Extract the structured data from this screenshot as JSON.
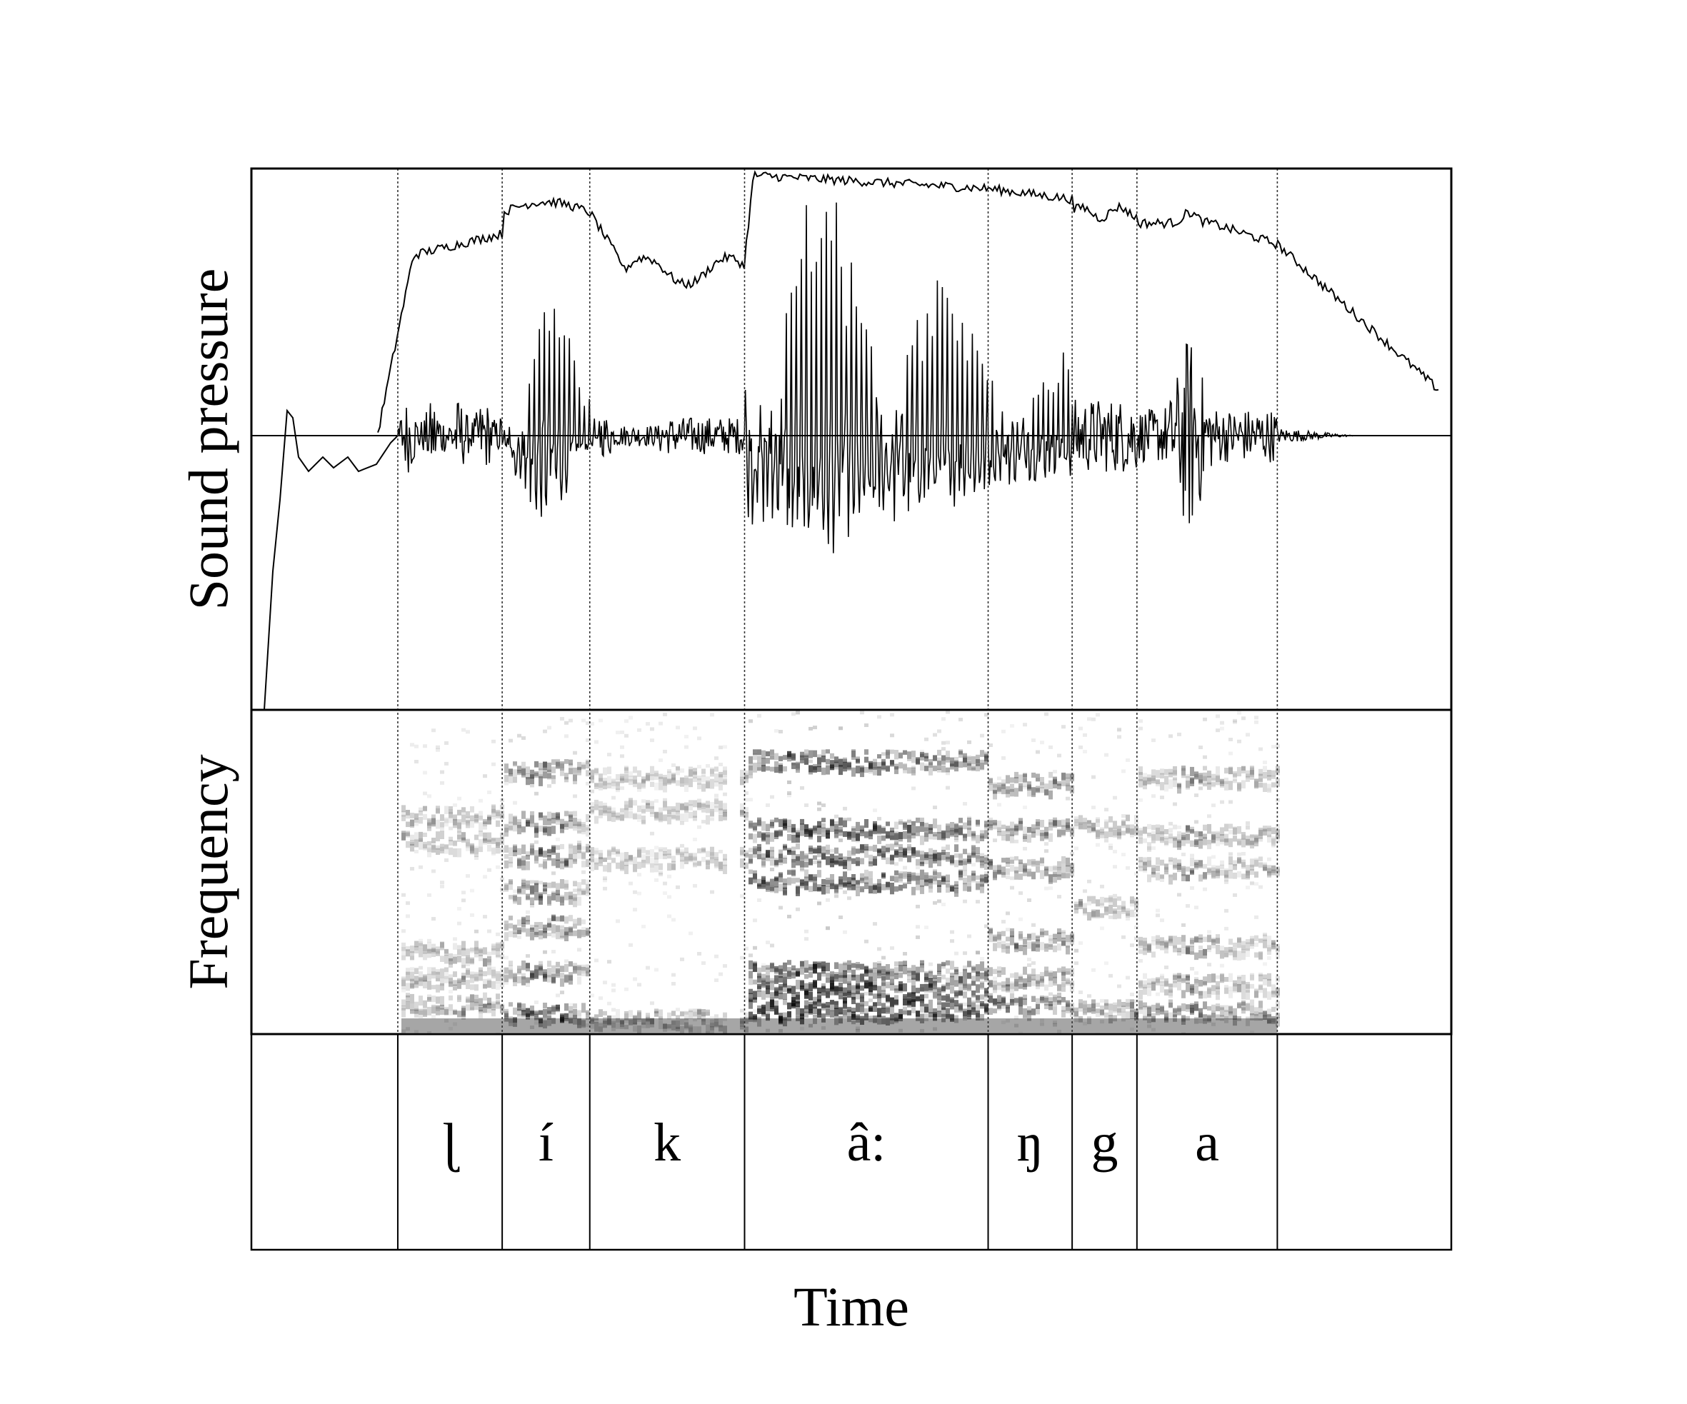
{
  "figure": {
    "y_axis_top": "Sound pressure",
    "y_axis_middle": "Frequency",
    "x_axis": "Time",
    "segments": [
      {
        "label": "",
        "start": 0.0,
        "end": 0.122
      },
      {
        "label": "ɭ",
        "start": 0.122,
        "end": 0.209
      },
      {
        "label": "í",
        "start": 0.209,
        "end": 0.282
      },
      {
        "label": "k",
        "start": 0.282,
        "end": 0.411
      },
      {
        "label": "â:",
        "start": 0.411,
        "end": 0.614
      },
      {
        "label": "ŋ",
        "start": 0.614,
        "end": 0.684
      },
      {
        "label": "g",
        "start": 0.684,
        "end": 0.738
      },
      {
        "label": "a",
        "start": 0.738,
        "end": 0.855
      },
      {
        "label": "",
        "start": 0.855,
        "end": 1.0
      }
    ],
    "colors": {
      "ink": "#000000",
      "paper": "#ffffff",
      "dotted": "#333333"
    }
  }
}
